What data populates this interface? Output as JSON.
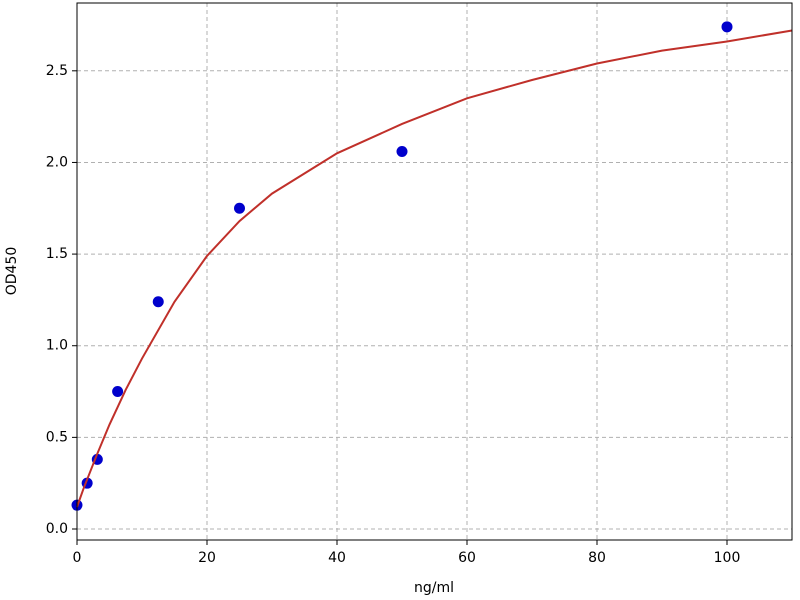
{
  "chart_data": {
    "type": "scatter",
    "x_label": "ng/ml",
    "y_label": "OD450",
    "xlim": [
      0,
      110
    ],
    "ylim": [
      -0.06,
      2.87
    ],
    "xticks": [
      0,
      20,
      40,
      60,
      80,
      100
    ],
    "yticks": [
      {
        "value": 0,
        "label": "0.0"
      },
      0.5,
      {
        "value": 1,
        "label": "1.0"
      },
      1.5,
      {
        "value": 2,
        "label": "2.0"
      },
      2.5
    ],
    "grid": true,
    "series": [
      {
        "type": "scatter",
        "color": "#0000cc",
        "x": [
          0,
          1.5625,
          3.125,
          6.25,
          12.5,
          25,
          50,
          100
        ],
        "values": [
          0.13,
          0.25,
          0.38,
          0.75,
          1.24,
          1.75,
          2.06,
          2.74
        ]
      },
      {
        "type": "line",
        "color": "#c0302a",
        "x": [
          0,
          1,
          2,
          3,
          5,
          7.5,
          10,
          15,
          20,
          25,
          30,
          40,
          50,
          60,
          70,
          80,
          90,
          100,
          110
        ],
        "values": [
          0.12,
          0.22,
          0.31,
          0.4,
          0.57,
          0.76,
          0.93,
          1.24,
          1.49,
          1.68,
          1.83,
          2.05,
          2.21,
          2.35,
          2.45,
          2.54,
          2.61,
          2.66,
          2.72
        ]
      }
    ]
  }
}
